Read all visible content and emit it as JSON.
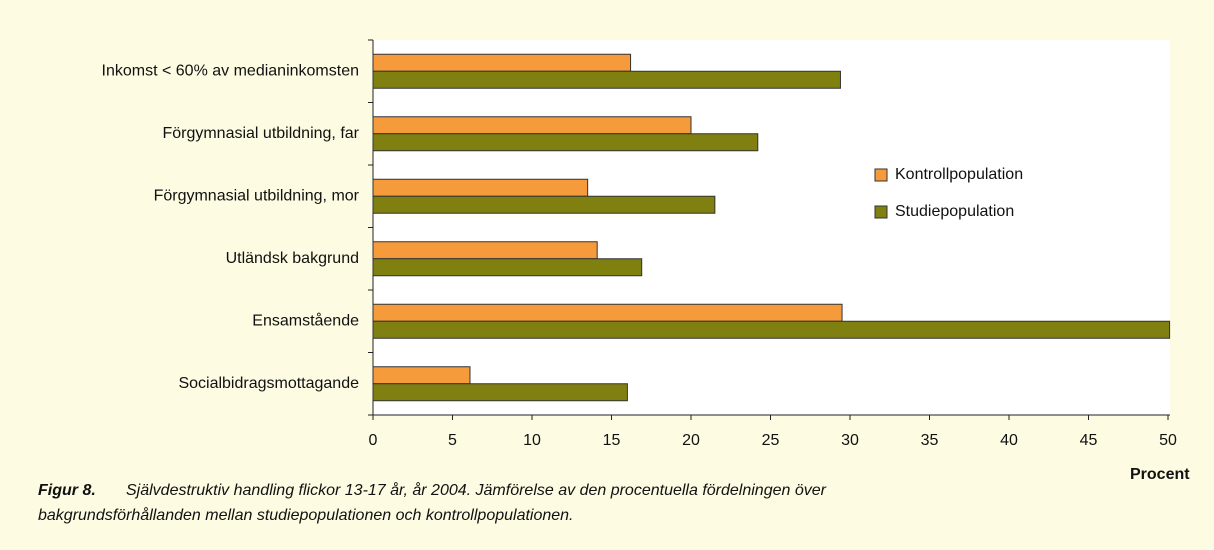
{
  "chart_data": {
    "type": "barh",
    "title": "Figur 8.",
    "subtitle": [
      "Självdestruktiv handling flickor 13-17 år, år 2004. Jämförelse av den procentuella fördelningen över",
      "bakgrundsförhållanden mellan studiepopulationen och kontrollpopulationen."
    ],
    "x_label": "Procent",
    "categories": [
      "Inkomst < 60% av medianinkomsten",
      "Förgymnasial utbildning, far",
      "Förgymnasial utbildning, mor",
      "Utländsk bakgrund",
      "Ensamstående",
      "Socialbidragsmottagande"
    ],
    "series": [
      {
        "name": "Kontrollpopulation",
        "color": "#f59b3c",
        "values": [
          16.2,
          20,
          13.5,
          14.1,
          29.5,
          6.1
        ]
      },
      {
        "name": "Studiepopulation",
        "color": "#808010",
        "values": [
          29.4,
          24.2,
          21.5,
          16.9,
          50.1,
          16
        ]
      }
    ],
    "xlim": [
      0,
      50
    ],
    "xticks": [
      0,
      5,
      10,
      15,
      20,
      25,
      30,
      35,
      40,
      45,
      50
    ],
    "legend": "right"
  }
}
